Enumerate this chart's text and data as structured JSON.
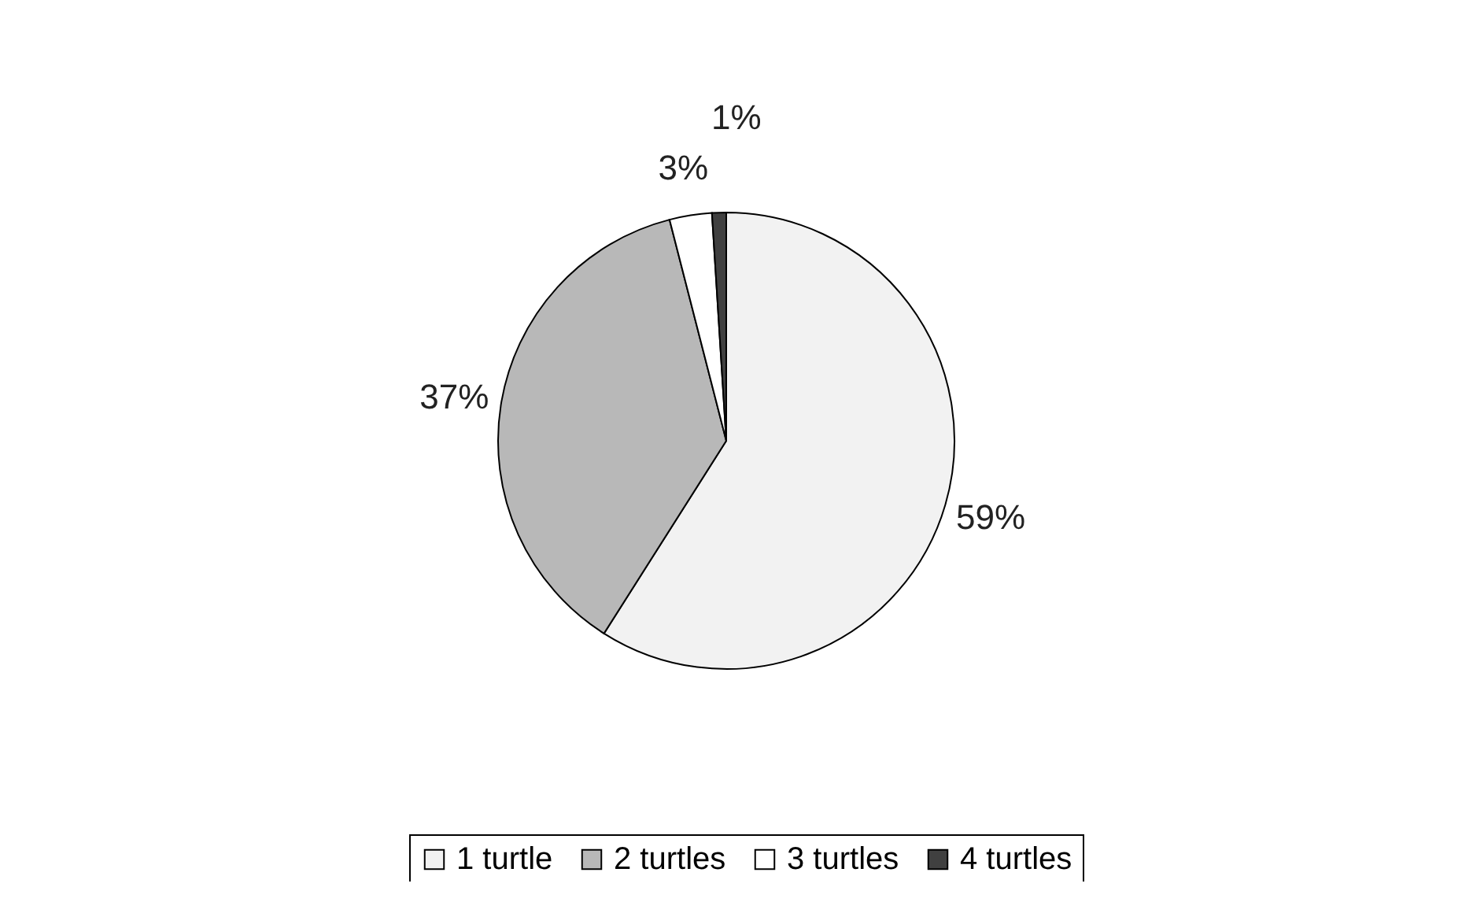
{
  "chart_data": {
    "type": "pie",
    "categories": [
      "1 turtle",
      "2 turtles",
      "3 turtles",
      "4 turtles"
    ],
    "values": [
      59,
      37,
      3,
      1
    ],
    "colors": [
      "#f2f2f2",
      "#b8b8b8",
      "#ffffff",
      "#404040"
    ],
    "value_labels": [
      "59%",
      "37%",
      "3%",
      "1%"
    ],
    "legend": "bottom"
  }
}
